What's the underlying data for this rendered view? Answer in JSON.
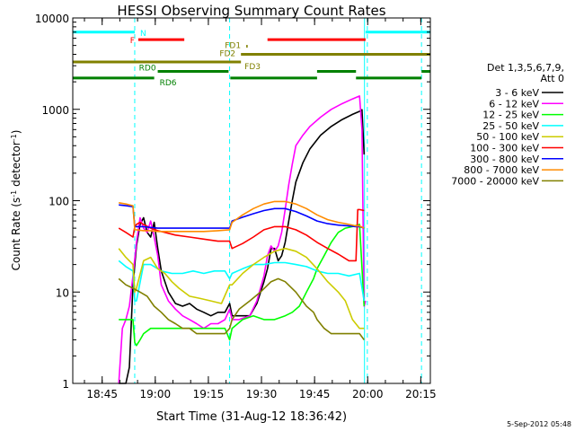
{
  "chart_data": {
    "type": "line",
    "title": "HESSI Observing Summary Count Rates",
    "xlabel": "Start Time (31-Aug-12 18:36:42)",
    "ylabel_main": "Count Rate (s",
    "ylabel_exp1": "-1",
    "ylabel_mid": " detector",
    "ylabel_exp2": "-1",
    "ylabel_end": ")",
    "x_unit": "minutes after 18:36:42 UT",
    "xlim": [
      0,
      101
    ],
    "ylim": [
      1,
      10000
    ],
    "yscale": "log",
    "x_ticks": [
      {
        "label": "18:45",
        "x": 8.3
      },
      {
        "label": "19:00",
        "x": 23.3
      },
      {
        "label": "19:15",
        "x": 38.3
      },
      {
        "label": "19:30",
        "x": 53.3
      },
      {
        "label": "19:45",
        "x": 68.3
      },
      {
        "label": "20:00",
        "x": 83.3
      },
      {
        "label": "20:15",
        "x": 98.3
      }
    ],
    "y_ticks": [
      {
        "label": "1",
        "y": 1
      },
      {
        "label": "10",
        "y": 10
      },
      {
        "label": "100",
        "y": 100
      },
      {
        "label": "1000",
        "y": 1000
      },
      {
        "label": "10000",
        "y": 10000
      }
    ],
    "legend": {
      "placement": "right",
      "header": [
        "Det 1,3,5,6,7,9,",
        "Att 0"
      ],
      "entries": [
        {
          "label": "3 - 6 keV",
          "color": "#000000"
        },
        {
          "label": "6 - 12 keV",
          "color": "#ff00ff"
        },
        {
          "label": "12 - 25 keV",
          "color": "#00ff00"
        },
        {
          "label": "25 - 50 keV",
          "color": "#00ffff"
        },
        {
          "label": "50 - 100 keV",
          "color": "#cccc00"
        },
        {
          "label": "100 - 300 keV",
          "color": "#ff0000"
        },
        {
          "label": "300 - 800 keV",
          "color": "#0000ff"
        },
        {
          "label": "800 - 7000 keV",
          "color": "#ff8c00"
        },
        {
          "label": "7000 - 20000 keV",
          "color": "#808000"
        }
      ]
    },
    "flags": [
      {
        "label": "N",
        "color": "#00ffff",
        "y": 7000,
        "segments": [
          [
            0,
            17.5
          ],
          [
            82.7,
            101
          ]
        ]
      },
      {
        "label": "F",
        "color": "#ff0000",
        "y": 5800,
        "segments": [
          [
            18.5,
            31.5
          ],
          [
            55,
            82.7
          ]
        ]
      },
      {
        "label": "FD1",
        "color": "#808000",
        "y": 4900,
        "segments": [
          [
            49,
            49.4
          ]
        ]
      },
      {
        "label": "FD2",
        "color": "#808000",
        "y": 4000,
        "segments": [
          [
            47.5,
            101
          ]
        ]
      },
      {
        "label": "FD3",
        "color": "#808000",
        "y": 3300,
        "segments": [
          [
            0,
            47.5
          ]
        ]
      },
      {
        "label": "RD0",
        "color": "#008000",
        "y": 2600,
        "segments": [
          [
            24,
            44
          ],
          [
            69,
            80
          ],
          [
            98.5,
            101
          ]
        ]
      },
      {
        "label": "RD6",
        "color": "#008000",
        "y": 2200,
        "segments": [
          [
            0,
            23
          ],
          [
            44.5,
            69
          ],
          [
            80,
            98.5
          ]
        ]
      }
    ],
    "vlines": [
      {
        "x": 17.5,
        "color": "#00ffff",
        "style": "dashed"
      },
      {
        "x": 44.3,
        "color": "#00ffff",
        "style": "dashed"
      },
      {
        "x": 82.4,
        "color": "#00ffff",
        "style": "solid"
      },
      {
        "x": 83.2,
        "color": "#00ffff",
        "style": "dashed"
      },
      {
        "x": 98.5,
        "color": "#00ffff",
        "style": "dashed"
      }
    ],
    "series": [
      {
        "name": "3 - 6 keV",
        "color": "#000000",
        "x": [
          13,
          14,
          15,
          16,
          17,
          18,
          19,
          20,
          21,
          22,
          23,
          24,
          25,
          27,
          29,
          31,
          33,
          35,
          37,
          39,
          41,
          43,
          44.3,
          45,
          47,
          50,
          52,
          54,
          55,
          56,
          57,
          58,
          59,
          60,
          61,
          62,
          63,
          65,
          67,
          70,
          73,
          76,
          79,
          81,
          81.7,
          82.3
        ],
        "y": [
          1,
          1,
          1,
          1.5,
          12,
          32,
          55,
          65,
          45,
          40,
          58,
          30,
          17,
          10,
          7.5,
          7,
          7.5,
          6.5,
          6,
          5.5,
          6,
          6,
          7.5,
          5.5,
          5.5,
          5.5,
          7.5,
          13,
          18,
          30,
          30,
          22,
          25,
          35,
          60,
          100,
          160,
          260,
          370,
          520,
          650,
          770,
          880,
          950,
          990,
          320
        ]
      },
      {
        "name": "6 - 12 keV",
        "color": "#ff00ff",
        "x": [
          13,
          13.5,
          14,
          15,
          16,
          17,
          18,
          19,
          20,
          21,
          22,
          23,
          24,
          25,
          27,
          29,
          31,
          33,
          35,
          37,
          39,
          41,
          43,
          44.3,
          45,
          47,
          50,
          52,
          54,
          55,
          56,
          57,
          58,
          59,
          60,
          61,
          62,
          63,
          65,
          67,
          70,
          73,
          76,
          79,
          81,
          81.7,
          82.3,
          82.7
        ],
        "y": [
          1,
          2,
          4,
          5,
          7,
          15,
          35,
          65,
          50,
          45,
          60,
          40,
          25,
          12,
          8,
          6.5,
          5.5,
          5,
          4.5,
          4,
          4.5,
          4.5,
          5,
          6.5,
          5,
          5,
          5.5,
          8,
          15,
          25,
          32,
          28,
          32,
          45,
          80,
          150,
          250,
          400,
          520,
          650,
          820,
          1000,
          1150,
          1300,
          1400,
          600,
          7,
          8
        ]
      },
      {
        "name": "12 - 25 keV",
        "color": "#00ff00",
        "x": [
          13,
          15,
          17,
          17.5,
          18,
          19,
          20,
          22,
          25,
          28,
          31,
          34,
          37,
          40,
          43,
          44.3,
          45,
          48,
          51,
          54,
          57,
          60,
          62,
          64,
          66,
          68,
          69,
          71,
          73,
          75,
          77,
          79,
          81,
          82.3
        ],
        "y": [
          5,
          5,
          5,
          2.8,
          2.6,
          3,
          3.5,
          4,
          4,
          4,
          4,
          4,
          4,
          4,
          4,
          3,
          4,
          5,
          5.5,
          5,
          5,
          5.5,
          6,
          7,
          10,
          14,
          18,
          25,
          35,
          45,
          50,
          52,
          55,
          7
        ]
      },
      {
        "name": "25 - 50 keV",
        "color": "#00ffff",
        "x": [
          13,
          15,
          17,
          17.5,
          18,
          20,
          22,
          24,
          25,
          28,
          31,
          34,
          37,
          40,
          43,
          44.3,
          45,
          48,
          51,
          54,
          57,
          60,
          63,
          66,
          69,
          72,
          75,
          78,
          81,
          82.3
        ],
        "y": [
          22,
          19,
          17,
          8,
          8,
          20,
          20,
          18,
          17,
          16,
          16,
          17,
          16,
          17,
          17,
          14,
          16,
          18,
          20,
          20,
          21,
          21,
          20,
          19,
          17,
          16,
          16,
          15,
          16,
          8
        ]
      },
      {
        "name": "50 - 100 keV",
        "color": "#cccc00",
        "x": [
          13,
          15,
          17,
          17.5,
          18,
          20,
          22,
          24,
          26,
          28,
          30,
          33,
          36,
          39,
          42,
          44.3,
          45,
          48,
          51,
          54,
          57,
          60,
          63,
          66,
          69,
          72,
          75,
          77,
          79,
          81,
          82.3
        ],
        "y": [
          30,
          24,
          20,
          10,
          11,
          22,
          24,
          18,
          16,
          13,
          11,
          9,
          8.5,
          8,
          7.5,
          12,
          12,
          16,
          20,
          24,
          28,
          30,
          28,
          24,
          18,
          13,
          10,
          8,
          5,
          4,
          4
        ]
      },
      {
        "name": "100 - 300 keV",
        "color": "#ff0000",
        "x": [
          13,
          15,
          17,
          17.5,
          18,
          19,
          20,
          22,
          24,
          26,
          29,
          33,
          37,
          41,
          44.3,
          45,
          48,
          51,
          54,
          57,
          60,
          63,
          66,
          69,
          72,
          75,
          78,
          80,
          80.5,
          81,
          82.3
        ],
        "y": [
          50,
          45,
          40,
          52,
          55,
          58,
          55,
          50,
          47,
          45,
          42,
          40,
          38,
          36,
          36,
          30,
          34,
          40,
          48,
          52,
          52,
          48,
          42,
          35,
          30,
          26,
          22,
          22,
          80,
          80,
          78
        ]
      },
      {
        "name": "300 - 800 keV",
        "color": "#0000ff",
        "x": [
          13,
          15,
          17,
          17.5,
          18,
          20,
          22,
          24,
          26,
          29,
          33,
          37,
          41,
          44.3,
          45,
          48,
          51,
          54,
          57,
          60,
          63,
          66,
          69,
          72,
          75,
          78,
          80,
          81,
          82.3
        ],
        "y": [
          90,
          88,
          86,
          52,
          52,
          52,
          51,
          50,
          50,
          50,
          50,
          50,
          50,
          50,
          60,
          66,
          72,
          78,
          82,
          82,
          76,
          68,
          60,
          56,
          54,
          53,
          52,
          52,
          50
        ]
      },
      {
        "name": "800 - 7000 keV",
        "color": "#ff8c00",
        "x": [
          13,
          15,
          17,
          17.5,
          18,
          20,
          22,
          24,
          26,
          29,
          33,
          37,
          41,
          44.3,
          45,
          48,
          51,
          54,
          57,
          60,
          63,
          66,
          69,
          72,
          75,
          78,
          80,
          81,
          82.3
        ],
        "y": [
          95,
          92,
          88,
          48,
          48,
          47,
          47,
          46,
          46,
          46,
          46,
          46,
          47,
          48,
          58,
          70,
          82,
          92,
          98,
          98,
          92,
          82,
          70,
          62,
          58,
          55,
          53,
          53,
          50
        ]
      },
      {
        "name": "7000 - 20000 keV",
        "color": "#808000",
        "x": [
          13,
          15,
          17,
          19,
          21,
          23,
          25,
          27,
          29,
          31,
          33,
          35,
          37,
          39,
          41,
          43,
          44.3,
          45,
          47,
          50,
          53,
          56,
          58,
          60,
          63,
          66,
          68,
          69,
          71,
          73,
          75,
          77,
          79,
          81,
          82.3
        ],
        "y": [
          14,
          12,
          11,
          10,
          9,
          7,
          6,
          5,
          4.5,
          4,
          4,
          3.5,
          3.5,
          3.5,
          3.5,
          3.5,
          4,
          5,
          6.5,
          8,
          10,
          13,
          14,
          13,
          10,
          7,
          6,
          5,
          4,
          3.5,
          3.5,
          3.5,
          3.5,
          3.5,
          3
        ]
      }
    ]
  },
  "footer_date": "5-Sep-2012 05:48"
}
